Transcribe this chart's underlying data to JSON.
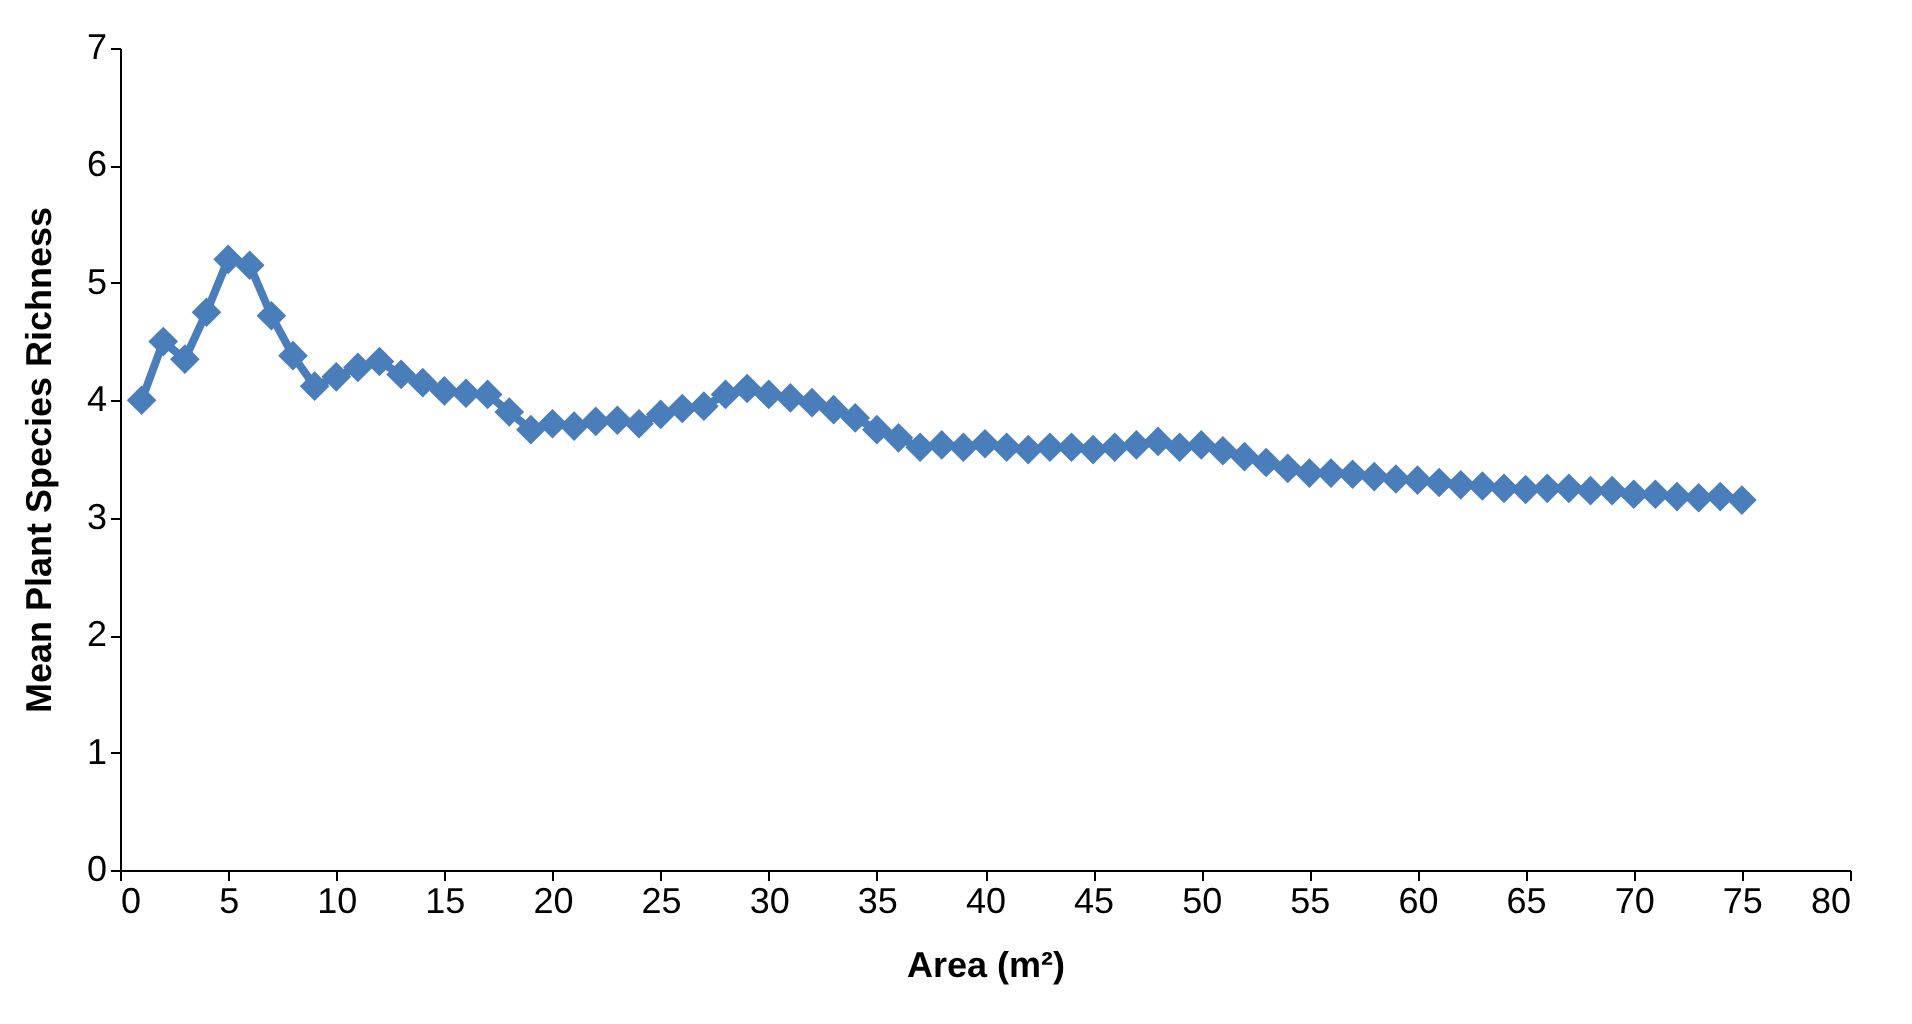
{
  "chart_data": {
    "type": "line",
    "xlabel": "Area (m²)",
    "ylabel": "Mean Plant Species Richness",
    "x": [
      1,
      2,
      3,
      4,
      5,
      6,
      7,
      8,
      9,
      10,
      11,
      12,
      13,
      14,
      15,
      16,
      17,
      18,
      19,
      20,
      21,
      22,
      23,
      24,
      25,
      26,
      27,
      28,
      29,
      30,
      31,
      32,
      33,
      34,
      35,
      36,
      37,
      38,
      39,
      40,
      41,
      42,
      43,
      44,
      45,
      46,
      47,
      48,
      49,
      50,
      51,
      52,
      53,
      54,
      55,
      56,
      57,
      58,
      59,
      60,
      61,
      62,
      63,
      64,
      65,
      66,
      67,
      68,
      69,
      70,
      71,
      72,
      73,
      74,
      75
    ],
    "series": [
      {
        "color": "#4a7ebb",
        "values": [
          4.0,
          4.5,
          4.35,
          4.75,
          5.2,
          5.15,
          4.72,
          4.38,
          4.12,
          4.2,
          4.28,
          4.33,
          4.22,
          4.15,
          4.08,
          4.06,
          4.05,
          3.9,
          3.75,
          3.8,
          3.78,
          3.82,
          3.83,
          3.8,
          3.88,
          3.93,
          3.95,
          4.05,
          4.1,
          4.05,
          4.02,
          3.98,
          3.92,
          3.85,
          3.75,
          3.68,
          3.6,
          3.62,
          3.6,
          3.63,
          3.6,
          3.58,
          3.6,
          3.6,
          3.58,
          3.6,
          3.62,
          3.65,
          3.6,
          3.62,
          3.57,
          3.52,
          3.47,
          3.42,
          3.38,
          3.38,
          3.37,
          3.35,
          3.33,
          3.32,
          3.3,
          3.28,
          3.27,
          3.25,
          3.24,
          3.25,
          3.25,
          3.23,
          3.23,
          3.2,
          3.2,
          3.18,
          3.17,
          3.18,
          3.15
        ]
      }
    ],
    "xlim": [
      0,
      80
    ],
    "xticks": [
      0,
      5,
      10,
      15,
      20,
      25,
      30,
      35,
      40,
      45,
      50,
      55,
      60,
      65,
      70,
      75,
      80
    ],
    "ylim": [
      0,
      7
    ],
    "yticks": [
      0,
      1,
      2,
      3,
      4,
      5,
      6,
      7
    ],
    "grid": false,
    "marker": "diamond",
    "line_style": "solid"
  }
}
